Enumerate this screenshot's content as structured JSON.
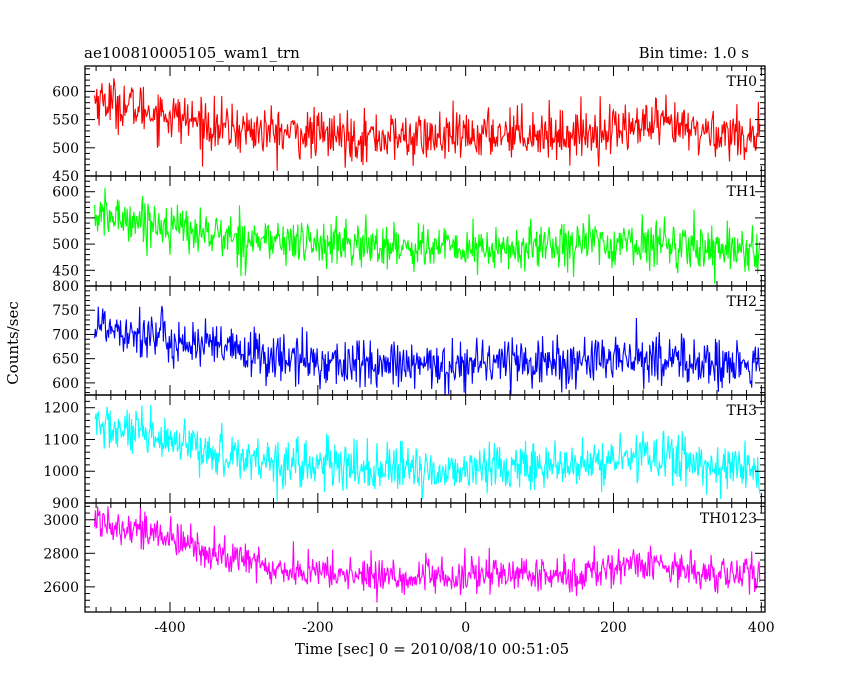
{
  "header": {
    "title": "ae100810005105_wam1_trn",
    "bin_time": "Bin time: 1.0 s"
  },
  "chart_data": {
    "type": "line",
    "xlabel": "Time [sec] 0 = 2010/08/10 00:51:05",
    "ylabel": "Counts/sec",
    "xlim": [
      -515,
      405
    ],
    "x_ticks": [
      -400,
      -200,
      0,
      200,
      400
    ],
    "x_start": -502,
    "x_end": 398,
    "x_step": 1,
    "panels": [
      {
        "name": "TH0",
        "color": "#ff0000",
        "ylim": [
          450,
          645
        ],
        "y_ticks": [
          450,
          500,
          550,
          600
        ],
        "trend": [
          [
            -502,
            588
          ],
          [
            -450,
            572
          ],
          [
            -400,
            558
          ],
          [
            -330,
            535
          ],
          [
            -250,
            526
          ],
          [
            -150,
            520
          ],
          [
            -50,
            518
          ],
          [
            0,
            518
          ],
          [
            60,
            530
          ],
          [
            140,
            522
          ],
          [
            200,
            534
          ],
          [
            260,
            540
          ],
          [
            320,
            528
          ],
          [
            398,
            522
          ]
        ],
        "noise": 22
      },
      {
        "name": "TH1",
        "color": "#00ff00",
        "ylim": [
          420,
          630
        ],
        "y_ticks": [
          450,
          500,
          550,
          600
        ],
        "trend": [
          [
            -502,
            553
          ],
          [
            -450,
            548
          ],
          [
            -400,
            535
          ],
          [
            -330,
            515
          ],
          [
            -250,
            505
          ],
          [
            -150,
            498
          ],
          [
            -50,
            495
          ],
          [
            0,
            490
          ],
          [
            60,
            488
          ],
          [
            140,
            505
          ],
          [
            200,
            500
          ],
          [
            260,
            502
          ],
          [
            320,
            495
          ],
          [
            398,
            490
          ]
        ],
        "noise": 22
      },
      {
        "name": "TH2",
        "color": "#0000ff",
        "ylim": [
          575,
          800
        ],
        "y_ticks": [
          600,
          650,
          700,
          750,
          800
        ],
        "trend": [
          [
            -502,
            722
          ],
          [
            -450,
            708
          ],
          [
            -400,
            688
          ],
          [
            -330,
            670
          ],
          [
            -250,
            650
          ],
          [
            -150,
            638
          ],
          [
            -50,
            632
          ],
          [
            0,
            640
          ],
          [
            60,
            648
          ],
          [
            140,
            640
          ],
          [
            200,
            648
          ],
          [
            260,
            652
          ],
          [
            320,
            640
          ],
          [
            398,
            632
          ]
        ],
        "noise": 26
      },
      {
        "name": "TH3",
        "color": "#00ffff",
        "ylim": [
          900,
          1240
        ],
        "y_ticks": [
          900,
          1000,
          1100,
          1200
        ],
        "trend": [
          [
            -502,
            1148
          ],
          [
            -450,
            1118
          ],
          [
            -400,
            1085
          ],
          [
            -330,
            1055
          ],
          [
            -250,
            1030
          ],
          [
            -150,
            1010
          ],
          [
            -50,
            1000
          ],
          [
            0,
            1005
          ],
          [
            60,
            1020
          ],
          [
            140,
            1010
          ],
          [
            200,
            1035
          ],
          [
            260,
            1055
          ],
          [
            320,
            1020
          ],
          [
            398,
            1005
          ]
        ],
        "noise": 38
      },
      {
        "name": "TH0123",
        "color": "#ff00ff",
        "ylim": [
          2450,
          3100
        ],
        "y_ticks": [
          2600,
          2800,
          3000
        ],
        "trend": [
          [
            -502,
            3000
          ],
          [
            -450,
            2960
          ],
          [
            -400,
            2880
          ],
          [
            -330,
            2790
          ],
          [
            -250,
            2700
          ],
          [
            -150,
            2670
          ],
          [
            -50,
            2650
          ],
          [
            0,
            2660
          ],
          [
            60,
            2680
          ],
          [
            140,
            2660
          ],
          [
            200,
            2720
          ],
          [
            260,
            2740
          ],
          [
            320,
            2690
          ],
          [
            398,
            2660
          ]
        ],
        "noise": 55
      }
    ]
  }
}
